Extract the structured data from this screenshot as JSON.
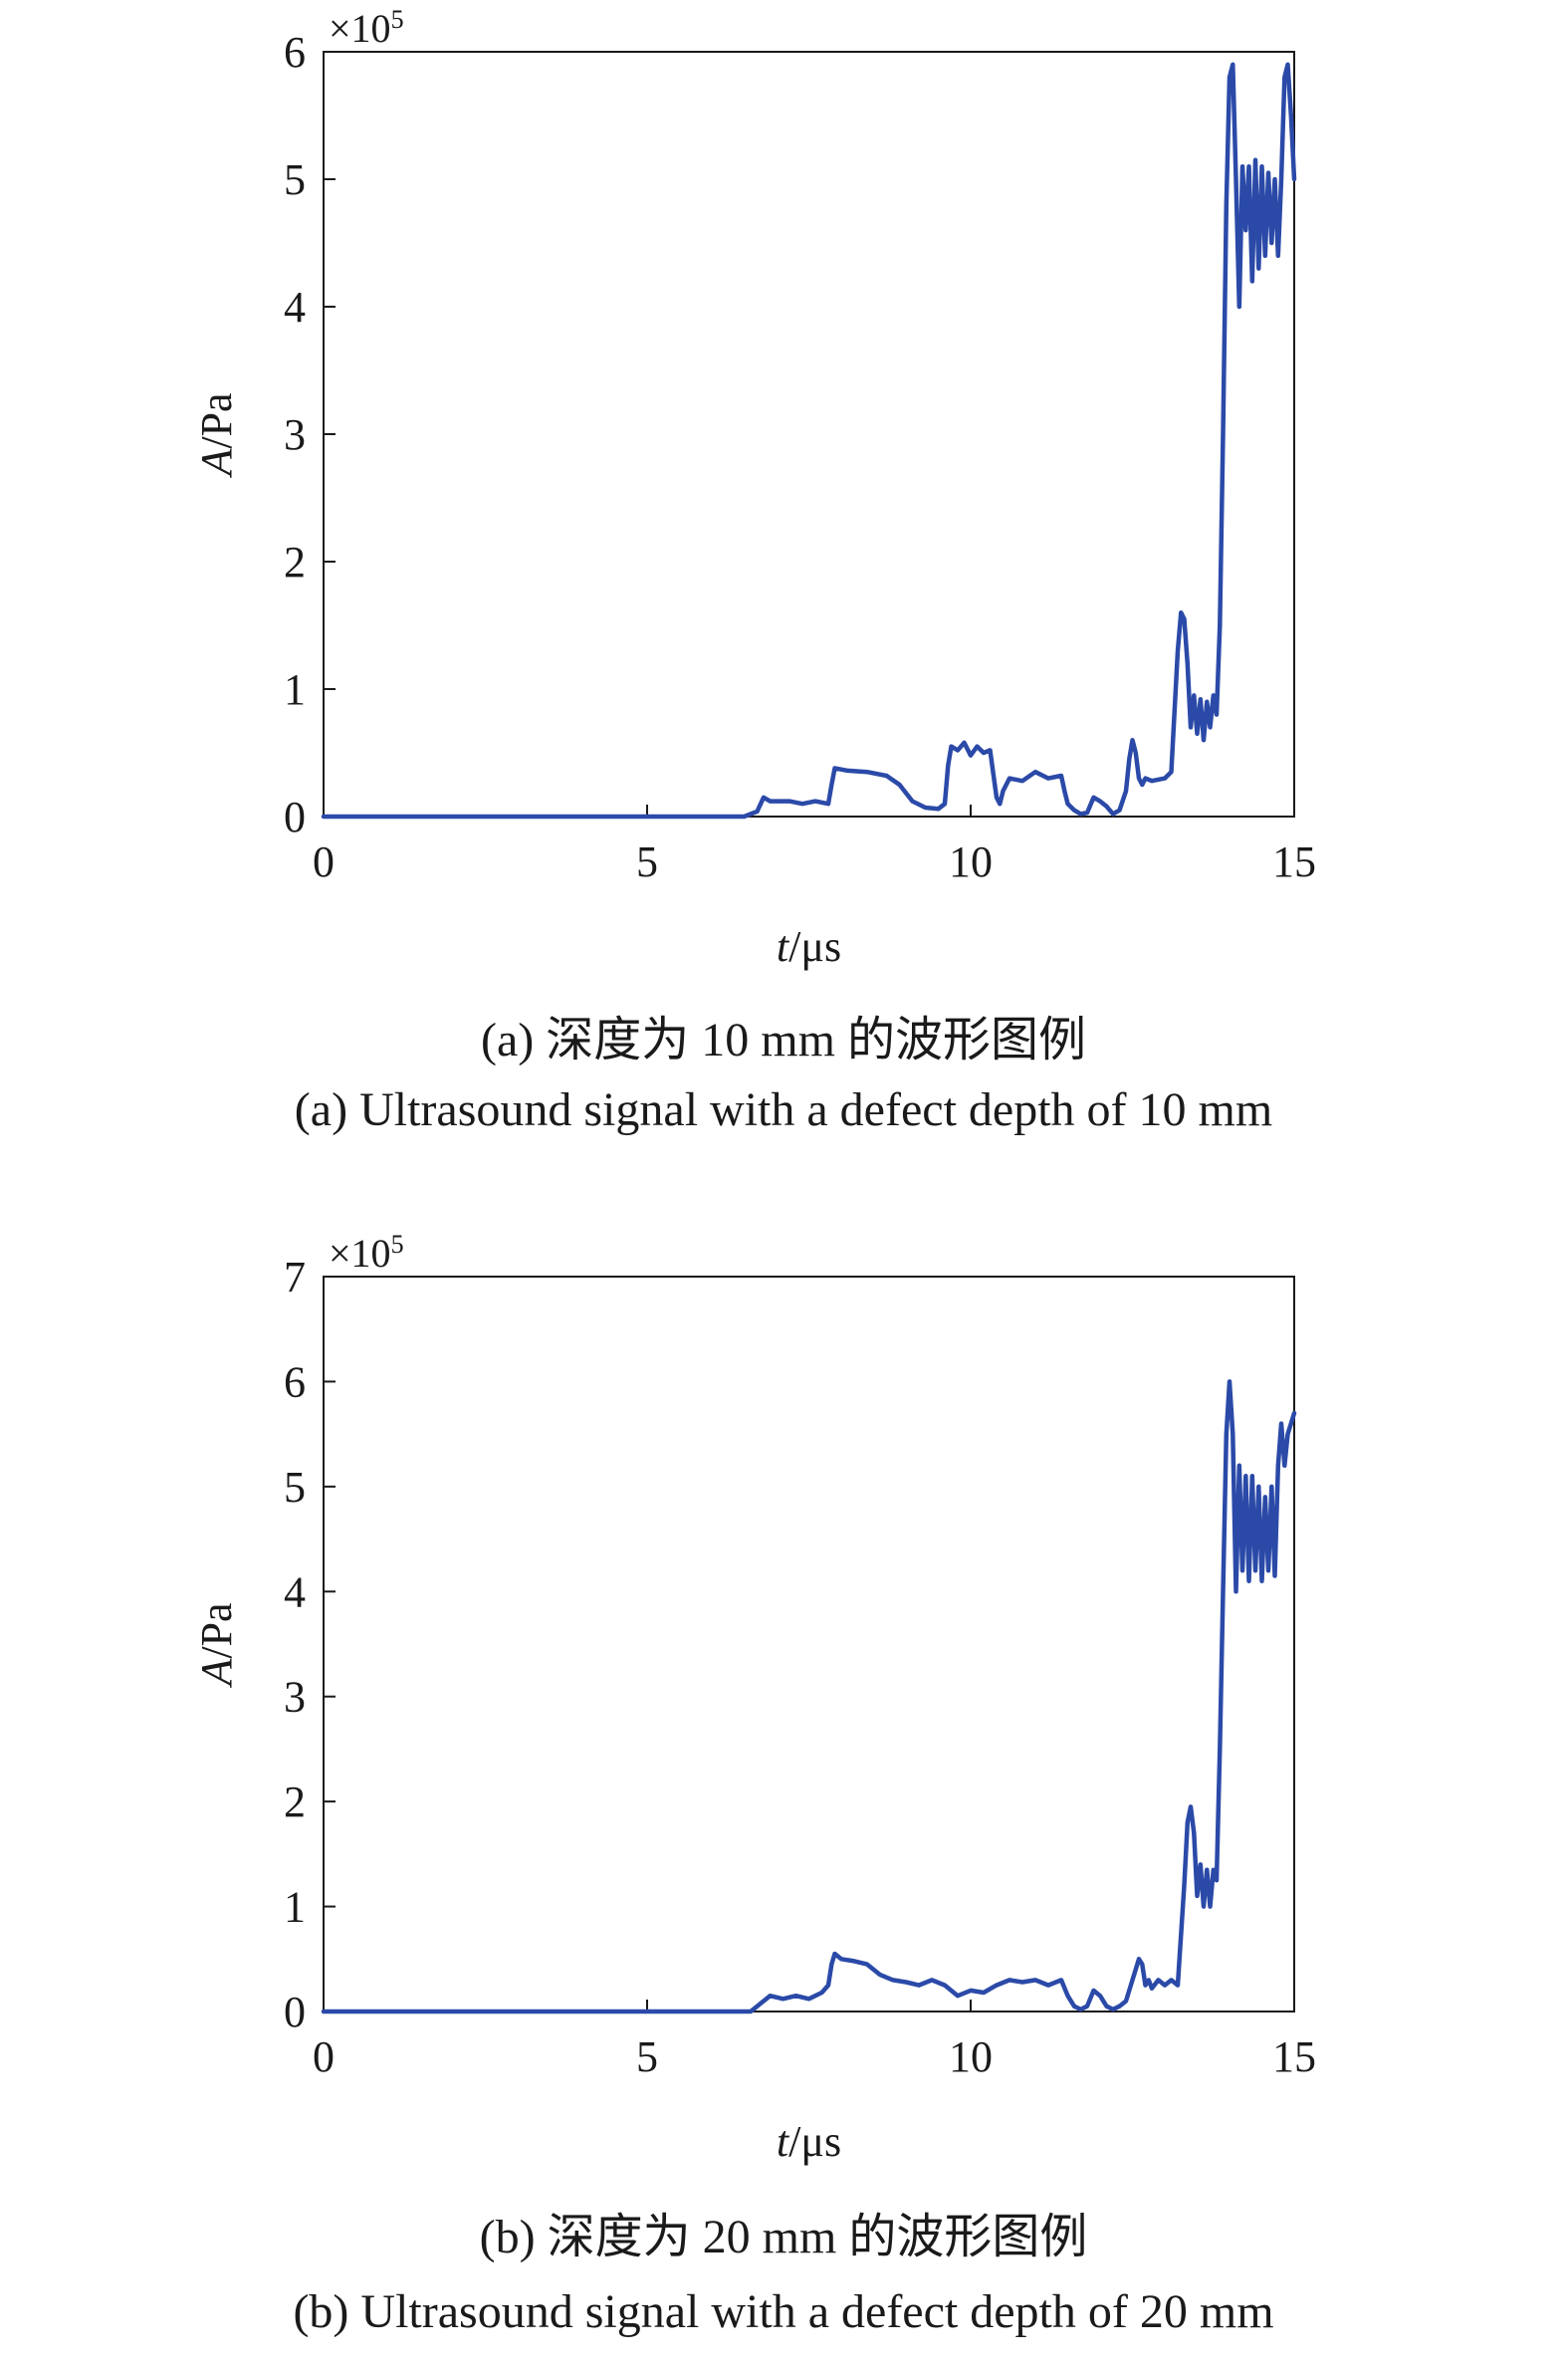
{
  "chart_data": [
    {
      "type": "line",
      "panel": "a",
      "xlabel_var": "t",
      "xlabel_unit": "/μs",
      "ylabel_var": "A",
      "ylabel_unit": "/Pa",
      "multiplier_base": "×10",
      "multiplier_exp": "5",
      "xlim": [
        0,
        15
      ],
      "ylim": [
        0,
        6
      ],
      "xticks": [
        0,
        5,
        10,
        15
      ],
      "yticks": [
        0,
        1,
        2,
        3,
        4,
        5,
        6
      ],
      "caption_cn": "(a) 深度为 10 mm 的波形图例",
      "caption_en": "(a) Ultrasound signal with a defect depth of 10 mm",
      "color": "#2b4aa8",
      "series": [
        {
          "x": [
            0,
            6.5,
            6.7,
            6.8,
            6.9,
            7.2,
            7.4,
            7.6,
            7.8,
            7.85,
            7.9,
            8.1,
            8.4,
            8.7,
            8.9,
            9.1,
            9.3,
            9.5,
            9.6,
            9.65,
            9.7,
            9.8,
            9.9,
            10.0,
            10.1,
            10.2,
            10.3,
            10.4,
            10.45,
            10.5,
            10.6,
            10.8,
            11.0,
            11.2,
            11.4,
            11.45,
            11.5,
            11.6,
            11.7,
            11.8,
            11.9,
            12.0,
            12.1,
            12.2,
            12.3,
            12.4,
            12.45,
            12.5,
            12.55,
            12.6,
            12.65,
            12.7,
            12.8,
            13.0,
            13.1,
            13.2,
            13.25,
            13.3,
            13.35,
            13.4,
            13.45,
            13.5,
            13.55,
            13.6,
            13.65,
            13.7,
            13.75,
            13.8,
            13.85,
            13.9,
            13.95,
            14.0,
            14.05,
            14.1,
            14.15,
            14.2,
            14.25,
            14.3,
            14.35,
            14.4,
            14.45,
            14.5,
            14.55,
            14.6,
            14.65,
            14.7,
            14.75,
            14.8,
            14.85,
            14.9,
            14.95,
            15.0
          ],
          "y": [
            0,
            0,
            0.04,
            0.15,
            0.12,
            0.12,
            0.1,
            0.12,
            0.1,
            0.25,
            0.38,
            0.36,
            0.35,
            0.32,
            0.25,
            0.12,
            0.07,
            0.06,
            0.1,
            0.4,
            0.55,
            0.52,
            0.58,
            0.48,
            0.55,
            0.5,
            0.52,
            0.15,
            0.1,
            0.2,
            0.3,
            0.28,
            0.35,
            0.3,
            0.32,
            0.2,
            0.1,
            0.05,
            0.02,
            0.03,
            0.15,
            0.12,
            0.08,
            0.02,
            0.05,
            0.2,
            0.45,
            0.6,
            0.5,
            0.3,
            0.25,
            0.3,
            0.28,
            0.3,
            0.35,
            1.3,
            1.6,
            1.55,
            1.2,
            0.7,
            0.95,
            0.65,
            0.92,
            0.6,
            0.9,
            0.7,
            0.95,
            0.8,
            1.5,
            3.0,
            4.8,
            5.8,
            5.9,
            5.0,
            4.0,
            5.1,
            4.6,
            5.1,
            4.2,
            5.15,
            4.3,
            5.1,
            4.4,
            5.05,
            4.5,
            5.0,
            4.4,
            5.0,
            5.8,
            5.9,
            5.5,
            5.0
          ]
        }
      ]
    },
    {
      "type": "line",
      "panel": "b",
      "xlabel_var": "t",
      "xlabel_unit": "/μs",
      "ylabel_var": "A",
      "ylabel_unit": "/Pa",
      "multiplier_base": "×10",
      "multiplier_exp": "5",
      "xlim": [
        0,
        15
      ],
      "ylim": [
        0,
        7
      ],
      "xticks": [
        0,
        5,
        10,
        15
      ],
      "yticks": [
        0,
        1,
        2,
        3,
        4,
        5,
        6,
        7
      ],
      "caption_cn": "(b) 深度为 20 mm 的波形图例",
      "caption_en": "(b) Ultrasound signal with a defect depth of 20 mm",
      "color": "#2b4aa8",
      "series": [
        {
          "x": [
            0,
            6.6,
            6.8,
            6.9,
            7.1,
            7.3,
            7.5,
            7.7,
            7.8,
            7.85,
            7.9,
            8.0,
            8.2,
            8.4,
            8.6,
            8.8,
            9.0,
            9.2,
            9.4,
            9.6,
            9.8,
            10.0,
            10.2,
            10.4,
            10.6,
            10.8,
            11.0,
            11.2,
            11.4,
            11.5,
            11.6,
            11.7,
            11.8,
            11.9,
            12.0,
            12.1,
            12.2,
            12.3,
            12.4,
            12.5,
            12.6,
            12.65,
            12.7,
            12.75,
            12.8,
            12.9,
            13.0,
            13.1,
            13.2,
            13.3,
            13.35,
            13.4,
            13.45,
            13.5,
            13.55,
            13.6,
            13.65,
            13.7,
            13.75,
            13.8,
            13.85,
            13.9,
            13.95,
            14.0,
            14.05,
            14.1,
            14.15,
            14.2,
            14.25,
            14.3,
            14.35,
            14.4,
            14.45,
            14.5,
            14.55,
            14.6,
            14.65,
            14.7,
            14.75,
            14.8,
            14.85,
            14.9,
            14.95,
            15.0
          ],
          "y": [
            0,
            0,
            0.1,
            0.15,
            0.12,
            0.15,
            0.12,
            0.18,
            0.25,
            0.45,
            0.55,
            0.5,
            0.48,
            0.45,
            0.35,
            0.3,
            0.28,
            0.25,
            0.3,
            0.25,
            0.15,
            0.2,
            0.18,
            0.25,
            0.3,
            0.28,
            0.3,
            0.25,
            0.3,
            0.15,
            0.05,
            0.02,
            0.05,
            0.2,
            0.15,
            0.05,
            0.02,
            0.05,
            0.1,
            0.3,
            0.5,
            0.45,
            0.25,
            0.3,
            0.22,
            0.3,
            0.25,
            0.3,
            0.25,
            1.2,
            1.8,
            1.95,
            1.7,
            1.1,
            1.4,
            1.0,
            1.35,
            1.0,
            1.35,
            1.25,
            2.5,
            4.0,
            5.5,
            6.0,
            5.5,
            4.0,
            5.2,
            4.2,
            5.1,
            4.1,
            5.1,
            4.2,
            5.0,
            4.1,
            4.9,
            4.2,
            5.0,
            4.15,
            5.2,
            5.6,
            5.2,
            5.5,
            5.6,
            5.7
          ]
        }
      ]
    }
  ]
}
